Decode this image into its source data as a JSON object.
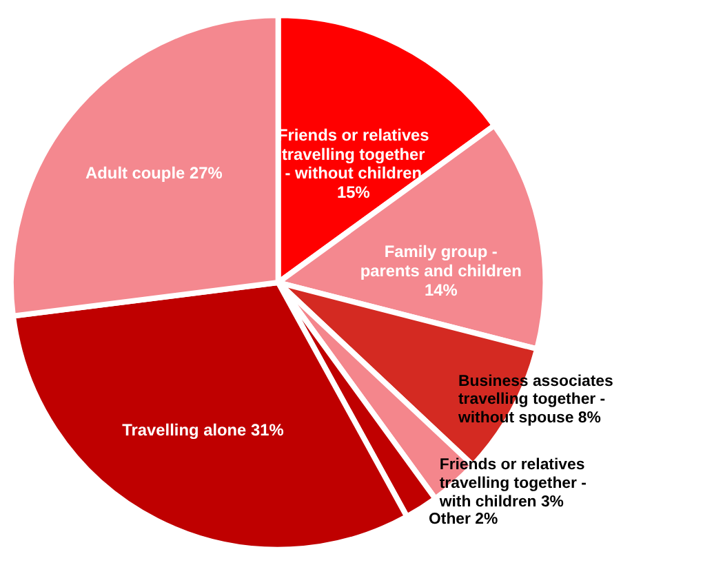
{
  "chart_data": {
    "type": "pie",
    "categories": [
      "Friends or relatives travelling together - without children",
      "Family group - parents and children",
      "Business associates travelling together - without spouse",
      "Friends or relatives travelling together - with children",
      "Other",
      "Travelling alone",
      "Adult couple"
    ],
    "values": [
      15,
      14,
      8,
      3,
      2,
      31,
      27
    ],
    "colors": [
      "#ff0000",
      "#f4888f",
      "#d42a22",
      "#f4868c",
      "#c00000",
      "#bf0000",
      "#f4888f"
    ],
    "value_labels": [
      "15%",
      "14%",
      "8%",
      "3%",
      "2%",
      "31%",
      "27%"
    ],
    "legend": false
  }
}
